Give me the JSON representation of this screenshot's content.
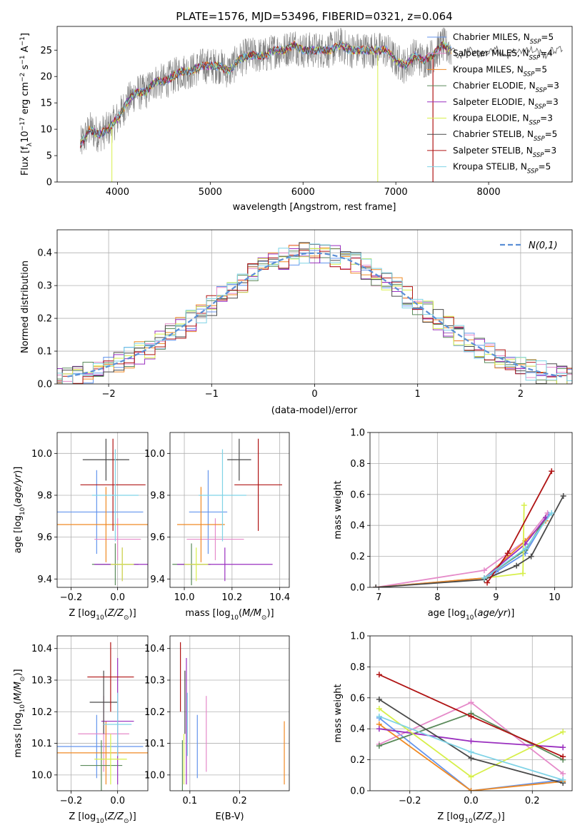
{
  "title": "PLATE=1576, MJD=53496, FIBERID=0321, z=0.064",
  "colors": [
    "#6495ed",
    "#e58ac9",
    "#f08a24",
    "#5a8a5a",
    "#9a2fbf",
    "#d7ef4a",
    "#4a4a4a",
    "#b01414",
    "#7fd3e6"
  ],
  "models": [
    {
      "name": "Chabrier MILES",
      "nssp": "5"
    },
    {
      "name": "Salpeter MILES",
      "nssp": "4"
    },
    {
      "name": "Kroupa MILES",
      "nssp": "5"
    },
    {
      "name": "Chabrier ELODIE",
      "nssp": "3"
    },
    {
      "name": "Salpeter ELODIE",
      "nssp": "3"
    },
    {
      "name": "Kroupa ELODIE",
      "nssp": "3"
    },
    {
      "name": "Chabrier STELIB",
      "nssp": "5"
    },
    {
      "name": "Salpeter STELIB",
      "nssp": "3"
    },
    {
      "name": "Kroupa STELIB",
      "nssp": "5"
    }
  ],
  "chart_data": [
    {
      "id": "spectrum",
      "type": "line",
      "xlabel": "wavelength [Angstrom, rest frame]",
      "ylabel": "Flux [f_λ10^-17 erg cm^-2 s^-1 A^-1]",
      "xlim": [
        3350,
        8900
      ],
      "ylim": [
        0,
        29.5
      ],
      "xticks": [
        4000,
        5000,
        6000,
        7000,
        8000
      ],
      "yticks": [
        0,
        5,
        10,
        15,
        20,
        25
      ],
      "continuum": [
        [
          3600,
          7
        ],
        [
          3700,
          10
        ],
        [
          3800,
          9
        ],
        [
          3900,
          10
        ],
        [
          4000,
          12
        ],
        [
          4100,
          15
        ],
        [
          4200,
          17
        ],
        [
          4300,
          17
        ],
        [
          4400,
          19
        ],
        [
          4500,
          19
        ],
        [
          4600,
          20
        ],
        [
          4700,
          21
        ],
        [
          4800,
          21
        ],
        [
          4900,
          22
        ],
        [
          5000,
          22
        ],
        [
          5100,
          22
        ],
        [
          5200,
          21
        ],
        [
          5300,
          23
        ],
        [
          5400,
          24
        ],
        [
          5500,
          24
        ],
        [
          5600,
          24
        ],
        [
          5700,
          25
        ],
        [
          5800,
          25
        ],
        [
          5900,
          26
        ],
        [
          6000,
          25
        ],
        [
          6100,
          25
        ],
        [
          6200,
          25
        ],
        [
          6300,
          25
        ],
        [
          6400,
          26
        ],
        [
          6500,
          25
        ],
        [
          6600,
          25
        ],
        [
          6700,
          25
        ],
        [
          6800,
          25
        ],
        [
          6900,
          25
        ],
        [
          7000,
          23
        ],
        [
          7100,
          22
        ],
        [
          7200,
          24
        ],
        [
          7300,
          23
        ],
        [
          7400,
          24
        ],
        [
          7500,
          26
        ],
        [
          7600,
          25
        ],
        [
          7700,
          24
        ],
        [
          7800,
          25
        ],
        [
          7900,
          24
        ],
        [
          8000,
          25
        ],
        [
          8100,
          25
        ],
        [
          8200,
          24
        ],
        [
          8300,
          25
        ],
        [
          8400,
          25
        ],
        [
          8500,
          25
        ],
        [
          8600,
          24
        ],
        [
          8700,
          25
        ],
        [
          8800,
          25
        ]
      ],
      "legend_position": "right"
    },
    {
      "id": "residuals",
      "type": "histogram",
      "xlabel": "(data-model)/error",
      "ylabel": "Normed distribution",
      "xlim": [
        -2.5,
        2.5
      ],
      "ylim": [
        0,
        0.47
      ],
      "xticks": [
        -2,
        -1,
        0,
        1,
        2
      ],
      "yticks": [
        0.0,
        0.1,
        0.2,
        0.3,
        0.4
      ],
      "bin_width": 0.1,
      "reference_label": "N(0,1)",
      "reference": "standard normal pdf",
      "legend_position": "top-right"
    },
    {
      "id": "age_vs_Z",
      "type": "errorbar",
      "xlabel": "Z [log10(Z/Z☉)]",
      "ylabel": "age [log10(age/yr)]",
      "xlim": [
        -0.26,
        0.13
      ],
      "ylim": [
        9.36,
        10.1
      ],
      "xticks": [
        -0.2,
        0.0
      ],
      "yticks": [
        9.4,
        9.6,
        9.8,
        10.0
      ],
      "points": [
        {
          "x": -0.09,
          "xerr": 0.2,
          "y": 9.72,
          "yerr": 0.2
        },
        {
          "x": 0.0,
          "xerr": 0.1,
          "y": 9.59,
          "yerr": 0.1
        },
        {
          "x": -0.05,
          "xerr": 0.21,
          "y": 9.66,
          "yerr": 0.18
        },
        {
          "x": -0.01,
          "xerr": 0.1,
          "y": 9.47,
          "yerr": 0.1
        },
        {
          "x": 0.02,
          "xerr": 0.12,
          "y": 9.47,
          "yerr": 0.08
        },
        {
          "x": 0.02,
          "xerr": 0.05,
          "y": 9.47,
          "yerr": 0.08
        },
        {
          "x": -0.05,
          "xerr": 0.1,
          "y": 9.97,
          "yerr": 0.1
        },
        {
          "x": -0.02,
          "xerr": 0.14,
          "y": 9.85,
          "yerr": 0.22
        },
        {
          "x": -0.01,
          "xerr": 0.1,
          "y": 9.8,
          "yerr": 0.22
        }
      ]
    },
    {
      "id": "age_vs_mass",
      "type": "errorbar",
      "xlabel": "mass [log10(M/M☉)]",
      "ylabel": "",
      "xlim": [
        9.94,
        10.44
      ],
      "ylim": [
        9.36,
        10.1
      ],
      "xticks": [
        10.0,
        10.2,
        10.4
      ],
      "yticks": [
        9.4,
        9.6,
        9.8,
        10.0
      ],
      "points": [
        {
          "x": 10.1,
          "xerr": 0.08,
          "y": 9.72,
          "yerr": 0.2
        },
        {
          "x": 10.13,
          "xerr": 0.12,
          "y": 9.59,
          "yerr": 0.1
        },
        {
          "x": 10.07,
          "xerr": 0.1,
          "y": 9.66,
          "yerr": 0.18
        },
        {
          "x": 10.03,
          "xerr": 0.08,
          "y": 9.47,
          "yerr": 0.1
        },
        {
          "x": 10.17,
          "xerr": 0.2,
          "y": 9.47,
          "yerr": 0.08
        },
        {
          "x": 10.05,
          "xerr": 0.05,
          "y": 9.47,
          "yerr": 0.08
        },
        {
          "x": 10.23,
          "xerr": 0.05,
          "y": 9.97,
          "yerr": 0.1
        },
        {
          "x": 10.31,
          "xerr": 0.1,
          "y": 9.85,
          "yerr": 0.22
        },
        {
          "x": 10.16,
          "xerr": 0.1,
          "y": 9.8,
          "yerr": 0.22
        }
      ]
    },
    {
      "id": "weight_vs_age",
      "type": "line",
      "xlabel": "age [log10(age/yr)]",
      "ylabel": "mass weight",
      "xlim": [
        6.85,
        10.3
      ],
      "ylim": [
        0,
        1
      ],
      "xticks": [
        7,
        8,
        9,
        10
      ],
      "yticks": [
        0.0,
        0.2,
        0.4,
        0.6,
        0.8,
        1.0
      ],
      "series": [
        {
          "x": [
            6.95,
            8.8,
            9.0,
            9.5,
            9.9
          ],
          "y": [
            0.0,
            0.06,
            0.1,
            0.22,
            0.47
          ]
        },
        {
          "x": [
            6.95,
            8.8,
            9.5,
            9.88
          ],
          "y": [
            0.0,
            0.11,
            0.3,
            0.48
          ]
        },
        {
          "x": [
            6.95,
            8.8,
            9.5,
            9.85
          ],
          "y": [
            0.0,
            0.06,
            0.3,
            0.43
          ]
        },
        {
          "x": [
            8.8,
            9.5,
            9.85
          ],
          "y": [
            0.06,
            0.24,
            0.45
          ]
        },
        {
          "x": [
            8.8,
            9.5,
            9.85
          ],
          "y": [
            0.06,
            0.28,
            0.45
          ]
        },
        {
          "x": [
            8.8,
            9.46,
            9.48
          ],
          "y": [
            0.06,
            0.09,
            0.53
          ]
        },
        {
          "x": [
            6.95,
            8.8,
            9.35,
            9.6,
            10.15
          ],
          "y": [
            0.0,
            0.05,
            0.14,
            0.2,
            0.59
          ]
        },
        {
          "x": [
            8.85,
            9.2,
            9.95
          ],
          "y": [
            0.03,
            0.22,
            0.75
          ]
        },
        {
          "x": [
            8.8,
            9.5,
            9.95
          ],
          "y": [
            0.06,
            0.25,
            0.48
          ]
        }
      ]
    },
    {
      "id": "mass_vs_Z",
      "type": "errorbar",
      "xlabel": "Z [log10(Z/Z☉)]",
      "ylabel": "mass [log10(M/M☉)]",
      "xlim": [
        -0.26,
        0.13
      ],
      "ylim": [
        9.95,
        10.44
      ],
      "xticks": [
        -0.2,
        0.0
      ],
      "yticks": [
        10.0,
        10.1,
        10.2,
        10.3,
        10.4
      ],
      "points": [
        {
          "x": -0.09,
          "xerr": 0.2,
          "y": 10.09,
          "yerr": 0.1
        },
        {
          "x": -0.06,
          "xerr": 0.11,
          "y": 10.13,
          "yerr": 0.12
        },
        {
          "x": -0.05,
          "xerr": 0.21,
          "y": 10.07,
          "yerr": 0.1
        },
        {
          "x": -0.07,
          "xerr": 0.09,
          "y": 10.03,
          "yerr": 0.08
        },
        {
          "x": 0.0,
          "xerr": 0.07,
          "y": 10.17,
          "yerr": 0.2
        },
        {
          "x": -0.03,
          "xerr": 0.07,
          "y": 10.05,
          "yerr": 0.08
        },
        {
          "x": -0.06,
          "xerr": 0.06,
          "y": 10.23,
          "yerr": 0.1
        },
        {
          "x": -0.03,
          "xerr": 0.1,
          "y": 10.31,
          "yerr": 0.11
        },
        {
          "x": 0.0,
          "xerr": 0.06,
          "y": 10.16,
          "yerr": 0.1
        }
      ]
    },
    {
      "id": "mass_vs_ebv",
      "type": "errorbar",
      "xlabel": "E(B-V)",
      "ylabel": "",
      "xlim": [
        0.06,
        0.3
      ],
      "ylim": [
        9.95,
        10.44
      ],
      "xticks": [
        0.1,
        0.2
      ],
      "yticks": [
        10.0,
        10.1,
        10.2,
        10.3,
        10.4
      ],
      "points": [
        {
          "x": 0.115,
          "y": 10.09,
          "yerr": 0.1
        },
        {
          "x": 0.133,
          "y": 10.13,
          "yerr": 0.12
        },
        {
          "x": 0.29,
          "y": 10.07,
          "yerr": 0.1
        },
        {
          "x": 0.085,
          "y": 10.03,
          "yerr": 0.08
        },
        {
          "x": 0.093,
          "y": 10.17,
          "yerr": 0.2
        },
        {
          "x": 0.088,
          "y": 10.05,
          "yerr": 0.08
        },
        {
          "x": 0.09,
          "y": 10.23,
          "yerr": 0.1
        },
        {
          "x": 0.081,
          "y": 10.31,
          "yerr": 0.11
        },
        {
          "x": 0.095,
          "y": 10.16,
          "yerr": 0.1
        }
      ]
    },
    {
      "id": "weight_vs_Z",
      "type": "line",
      "xlabel": "Z [log10(Z/Z☉)]",
      "ylabel": "mass weight",
      "xlim": [
        -0.33,
        0.33
      ],
      "ylim": [
        0,
        1
      ],
      "xticks": [
        -0.2,
        0.0,
        0.2
      ],
      "yticks": [
        0.0,
        0.2,
        0.4,
        0.6,
        0.8,
        1.0
      ],
      "series": [
        {
          "x": [
            -0.3,
            0.0,
            0.3
          ],
          "y": [
            0.47,
            0.0,
            0.07
          ]
        },
        {
          "x": [
            -0.3,
            0.0,
            0.3
          ],
          "y": [
            0.3,
            0.57,
            0.11
          ]
        },
        {
          "x": [
            -0.3,
            0.0,
            0.3
          ],
          "y": [
            0.43,
            0.0,
            0.06
          ]
        },
        {
          "x": [
            -0.3,
            0.0,
            0.3
          ],
          "y": [
            0.29,
            0.5,
            0.2
          ]
        },
        {
          "x": [
            -0.3,
            0.0,
            0.3
          ],
          "y": [
            0.4,
            0.32,
            0.28
          ]
        },
        {
          "x": [
            -0.3,
            0.0,
            0.3
          ],
          "y": [
            0.53,
            0.09,
            0.38
          ]
        },
        {
          "x": [
            -0.3,
            0.0,
            0.3
          ],
          "y": [
            0.59,
            0.21,
            0.05
          ]
        },
        {
          "x": [
            -0.3,
            0.0,
            0.3
          ],
          "y": [
            0.75,
            0.48,
            0.22
          ]
        },
        {
          "x": [
            -0.3,
            0.0,
            0.3
          ],
          "y": [
            0.48,
            0.25,
            0.07
          ]
        }
      ]
    }
  ]
}
